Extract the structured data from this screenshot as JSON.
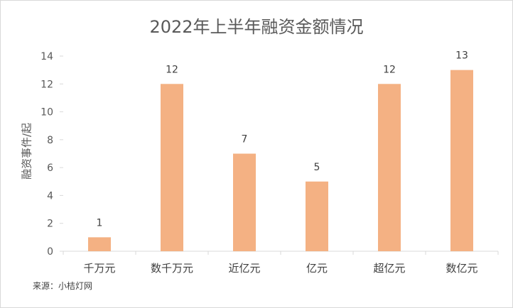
{
  "chart_data": {
    "type": "bar",
    "title": "2022年上半年融资金额情况",
    "xlabel": "",
    "ylabel": "融资事件/起",
    "categories": [
      "千万元",
      "数千万元",
      "近亿元",
      "亿元",
      "超亿元",
      "数亿元"
    ],
    "values": [
      1,
      12,
      7,
      5,
      12,
      13
    ],
    "ylim": [
      0,
      14
    ],
    "yticks": [
      0,
      2,
      4,
      6,
      8,
      10,
      12,
      14
    ],
    "grid": false,
    "data_labels": true,
    "bar_color": "#F4B183"
  },
  "source": "来源：小桔灯网"
}
